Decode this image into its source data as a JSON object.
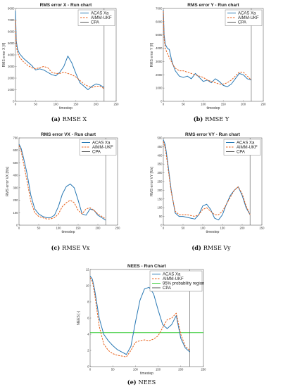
{
  "chart_data": [
    {
      "type": "line",
      "title": "RMS error X - Run chart",
      "xlabel": "timestep",
      "ylabel": "RMS error X [ft]",
      "caption": {
        "letter": "(a)",
        "text": "RMSE X"
      },
      "xlim": [
        0,
        250
      ],
      "ylim": [
        0,
        8000
      ],
      "xticks": [
        "0",
        "50",
        "100",
        "150",
        "200",
        "250"
      ],
      "yticks": [
        "0",
        "1000",
        "2000",
        "3000",
        "4000",
        "5000",
        "6000",
        "7000",
        "8000"
      ],
      "legend_position": "top-right",
      "cpa_x": 220,
      "series": [
        {
          "name": "ACAS Xa",
          "style": "solid",
          "color": "#2878b4",
          "x": [
            0,
            2,
            5,
            10,
            20,
            30,
            40,
            50,
            60,
            70,
            80,
            90,
            100,
            110,
            120,
            130,
            140,
            150,
            160,
            170,
            180,
            190,
            200,
            210,
            220
          ],
          "y": [
            7800,
            5200,
            4500,
            4100,
            3700,
            3400,
            3100,
            2700,
            2800,
            2700,
            2500,
            2300,
            2200,
            2500,
            3000,
            3900,
            3300,
            2400,
            1600,
            1300,
            1000,
            1300,
            1500,
            1400,
            1200
          ]
        },
        {
          "name": "AIMM-UKF",
          "style": "dashed",
          "color": "#e8621c",
          "x": [
            0,
            2,
            5,
            10,
            20,
            30,
            40,
            50,
            60,
            70,
            80,
            90,
            100,
            110,
            120,
            130,
            140,
            150,
            160,
            170,
            180,
            190,
            200,
            210,
            220
          ],
          "y": [
            7000,
            4800,
            4200,
            3800,
            3400,
            3100,
            2900,
            2800,
            2900,
            3000,
            2900,
            2500,
            2400,
            2400,
            2500,
            2400,
            2300,
            2100,
            1800,
            1500,
            1300,
            1200,
            1300,
            1300,
            1100
          ]
        }
      ],
      "cpa": {
        "name": "CPA",
        "color": "#555555"
      }
    },
    {
      "type": "line",
      "title": "RMS error Y - Run chart",
      "xlabel": "timestep",
      "ylabel": "RMS error Y [ft]",
      "caption": {
        "letter": "(b)",
        "text": "RMSE Y"
      },
      "xlim": [
        0,
        250
      ],
      "ylim": [
        0,
        7000
      ],
      "xticks": [
        "0",
        "50",
        "100",
        "150",
        "200",
        "250"
      ],
      "yticks": [
        "0",
        "1000",
        "2000",
        "3000",
        "4000",
        "5000",
        "6000",
        "7000"
      ],
      "legend_position": "top-right",
      "cpa_x": 220,
      "series": [
        {
          "name": "ACAS Xa",
          "style": "solid",
          "color": "#2878b4",
          "x": [
            0,
            2,
            5,
            10,
            15,
            20,
            25,
            30,
            40,
            50,
            60,
            70,
            80,
            90,
            100,
            110,
            120,
            130,
            140,
            150,
            160,
            170,
            180,
            190,
            200,
            210,
            220
          ],
          "y": [
            6900,
            5000,
            4300,
            4000,
            3900,
            3200,
            2700,
            2300,
            1900,
            1800,
            1900,
            1700,
            2100,
            1800,
            1500,
            1600,
            1400,
            1700,
            1500,
            1200,
            1100,
            1300,
            1700,
            2100,
            2000,
            1700,
            1600
          ]
        },
        {
          "name": "AIMM-UKF",
          "style": "dashed",
          "color": "#e8621c",
          "x": [
            0,
            2,
            5,
            10,
            15,
            20,
            25,
            30,
            40,
            50,
            60,
            70,
            80,
            90,
            100,
            110,
            120,
            130,
            140,
            150,
            160,
            170,
            180,
            190,
            200,
            210,
            220
          ],
          "y": [
            6800,
            4700,
            4000,
            3600,
            3300,
            3000,
            2700,
            2500,
            2300,
            2300,
            2200,
            2100,
            2000,
            1900,
            1800,
            1600,
            1500,
            1400,
            1300,
            1300,
            1400,
            1600,
            1900,
            2200,
            2200,
            1900,
            1600
          ]
        }
      ],
      "cpa": {
        "name": "CPA",
        "color": "#555555"
      }
    },
    {
      "type": "line",
      "title": "RMS error VX - Run chart",
      "xlabel": "timestep",
      "ylabel": "RMS error VX [ft/s]",
      "caption": {
        "letter": "(c)",
        "text": "RMSE Vx"
      },
      "xlim": [
        0,
        250
      ],
      "ylim": [
        0,
        700
      ],
      "xticks": [
        "0",
        "50",
        "100",
        "150",
        "200",
        "250"
      ],
      "yticks": [
        "0",
        "100",
        "200",
        "300",
        "400",
        "500",
        "600",
        "700"
      ],
      "legend_position": "top-right",
      "cpa_x": 220,
      "series": [
        {
          "name": "ACAS Xa",
          "style": "solid",
          "color": "#2878b4",
          "x": [
            0,
            5,
            10,
            20,
            30,
            40,
            50,
            60,
            70,
            80,
            90,
            100,
            110,
            120,
            130,
            140,
            150,
            160,
            170,
            180,
            190,
            200,
            210,
            220
          ],
          "y": [
            650,
            620,
            560,
            420,
            240,
            130,
            90,
            70,
            60,
            60,
            80,
            150,
            250,
            310,
            330,
            300,
            200,
            90,
            80,
            130,
            120,
            80,
            60,
            40
          ]
        },
        {
          "name": "AIMM-UKF",
          "style": "dashed",
          "color": "#e8621c",
          "x": [
            0,
            5,
            10,
            20,
            30,
            40,
            50,
            60,
            70,
            80,
            90,
            100,
            110,
            120,
            130,
            140,
            150,
            160,
            170,
            180,
            190,
            200,
            210,
            220
          ],
          "y": [
            640,
            600,
            520,
            360,
            190,
            100,
            70,
            60,
            50,
            50,
            60,
            90,
            150,
            180,
            200,
            180,
            120,
            90,
            130,
            140,
            120,
            90,
            70,
            50
          ]
        }
      ],
      "cpa": {
        "name": "CPA",
        "color": "#555555"
      }
    },
    {
      "type": "line",
      "title": "RMS error VY - Run chart",
      "xlabel": "timestep",
      "ylabel": "RMS error VY [ft/s]",
      "caption": {
        "letter": "(d)",
        "text": "RMSE Vy"
      },
      "xlim": [
        0,
        250
      ],
      "ylim": [
        0,
        500
      ],
      "xticks": [
        "0",
        "50",
        "100",
        "150",
        "200",
        "250"
      ],
      "yticks": [
        "0",
        "50",
        "100",
        "150",
        "200",
        "250",
        "300",
        "350",
        "400",
        "450",
        "500"
      ],
      "legend_position": "top-right",
      "cpa_x": 220,
      "series": [
        {
          "name": "ACAS Xa",
          "style": "solid",
          "color": "#2878b4",
          "x": [
            0,
            5,
            10,
            20,
            30,
            40,
            50,
            60,
            70,
            80,
            90,
            100,
            110,
            120,
            130,
            140,
            150,
            160,
            170,
            180,
            190,
            200,
            210,
            220
          ],
          "y": [
            490,
            460,
            380,
            200,
            70,
            50,
            50,
            45,
            40,
            35,
            60,
            110,
            120,
            90,
            40,
            30,
            60,
            120,
            170,
            200,
            220,
            170,
            100,
            60
          ]
        },
        {
          "name": "AIMM-UKF",
          "style": "dashed",
          "color": "#e8621c",
          "x": [
            0,
            5,
            10,
            20,
            30,
            40,
            50,
            60,
            70,
            80,
            90,
            100,
            110,
            120,
            130,
            140,
            150,
            160,
            170,
            180,
            190,
            200,
            210,
            220
          ],
          "y": [
            480,
            440,
            360,
            190,
            80,
            60,
            60,
            60,
            55,
            50,
            60,
            90,
            100,
            80,
            60,
            60,
            80,
            120,
            160,
            200,
            220,
            180,
            110,
            60
          ]
        }
      ],
      "cpa": {
        "name": "CPA",
        "color": "#555555"
      }
    },
    {
      "type": "line",
      "title": "NEES - Run Chart",
      "xlabel": "timestep",
      "ylabel": "NEES [-]",
      "caption": {
        "letter": "(e)",
        "text": "NEES"
      },
      "xlim": [
        0,
        250
      ],
      "ylim": [
        0,
        12
      ],
      "xticks": [
        "0",
        "50",
        "100",
        "150",
        "200",
        "250"
      ],
      "yticks": [
        "0",
        "2",
        "4",
        "6",
        "8",
        "10",
        "12"
      ],
      "legend_position": "top-right",
      "cpa_x": 220,
      "series": [
        {
          "name": "ACAS Xa",
          "style": "solid",
          "color": "#2878b4",
          "x": [
            0,
            5,
            10,
            20,
            30,
            40,
            50,
            60,
            70,
            80,
            90,
            100,
            110,
            120,
            130,
            140,
            150,
            160,
            170,
            180,
            190,
            200,
            210,
            220
          ],
          "y": [
            11.2,
            10.8,
            9.5,
            6.0,
            4.0,
            3.2,
            2.6,
            2.1,
            1.8,
            1.5,
            2.5,
            5.5,
            8.2,
            9.6,
            9.8,
            9.0,
            7.0,
            5.2,
            4.7,
            5.2,
            6.3,
            3.5,
            2.3,
            1.8
          ]
        },
        {
          "name": "AIMM-UKF",
          "style": "dashed",
          "color": "#e8621c",
          "x": [
            0,
            5,
            10,
            20,
            30,
            40,
            50,
            60,
            70,
            80,
            90,
            100,
            110,
            120,
            130,
            140,
            150,
            160,
            170,
            180,
            190,
            200,
            210,
            220
          ],
          "y": [
            11.0,
            10.5,
            9.0,
            5.0,
            2.8,
            2.0,
            1.6,
            1.4,
            1.3,
            1.2,
            2.0,
            3.0,
            3.2,
            3.3,
            3.2,
            3.4,
            3.8,
            4.8,
            5.8,
            6.0,
            6.6,
            4.0,
            2.5,
            2.0
          ]
        }
      ],
      "threshold": {
        "name": "95% probability region",
        "value": 4.2,
        "color": "#33cc33"
      },
      "cpa": {
        "name": "CPA",
        "color": "#555555"
      }
    }
  ]
}
